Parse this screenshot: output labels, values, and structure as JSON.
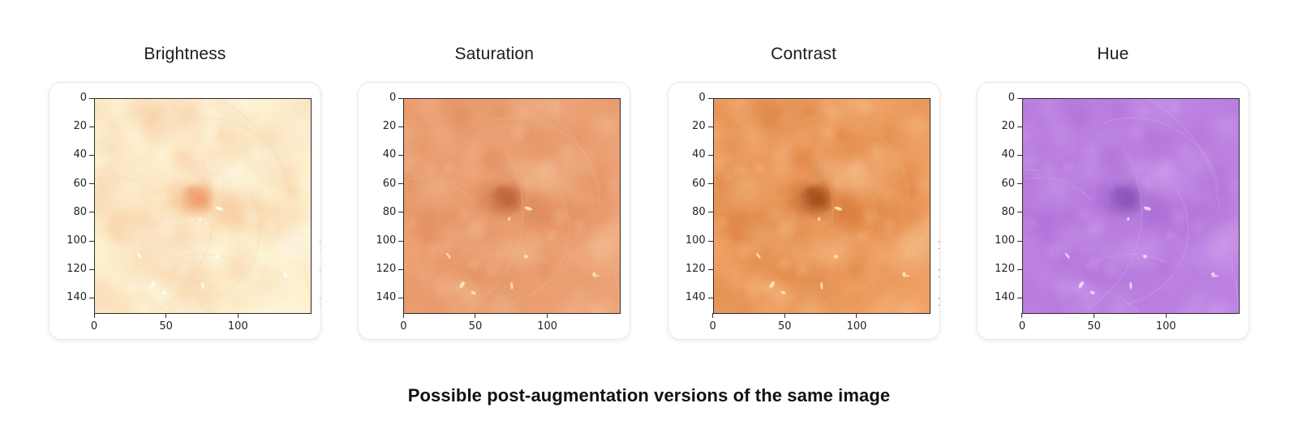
{
  "page": {
    "background": "#ffffff",
    "caption": "Possible post-augmentation versions of the same image"
  },
  "figure": {
    "y_ticks": [
      0,
      20,
      40,
      60,
      80,
      100,
      120,
      140
    ],
    "x_ticks": [
      0,
      50,
      100
    ],
    "axis_range": [
      0,
      150
    ],
    "spine_color": "#2b2b2b",
    "tick_color": "#242424",
    "neighbor_clipped_tick_label": "1"
  },
  "panels": [
    {
      "title": "Brightness",
      "clipped_right_ticks": true,
      "palette": {
        "base": "#fdf2d0",
        "patch": "#f6bb8b",
        "light": "#fffdf0",
        "lesion": "#ef9a67",
        "hair": "#f6d7a8",
        "speck": "#ffffff"
      }
    },
    {
      "title": "Saturation",
      "clipped_right_ticks": false,
      "palette": {
        "base": "#eda276",
        "patch": "#da8150",
        "light": "#f8cda5",
        "lesion": "#bd6136",
        "hair": "#eab88d",
        "speck": "#fdf0c2"
      }
    },
    {
      "title": "Contrast",
      "clipped_right_ticks": true,
      "palette": {
        "base": "#f0a064",
        "patch": "#d06e2c",
        "light": "#fbd2a0",
        "lesion": "#a14b18",
        "hair": "#eeab66",
        "speck": "#fff1bd"
      }
    },
    {
      "title": "Hue",
      "clipped_right_ticks": false,
      "palette": {
        "base": "#bd82e2",
        "patch": "#a867d3",
        "light": "#d9aef0",
        "lesion": "#8751b7",
        "hair": "#d4a4ec",
        "speck": "#f7e7ff"
      }
    }
  ],
  "chart_data": [
    {
      "type": "heatmap",
      "subtype": "rgb-photo-subplot",
      "title": "Brightness",
      "x_ticks": [
        0,
        50,
        100
      ],
      "y_ticks": [
        0,
        20,
        40,
        60,
        80,
        100,
        120,
        140
      ],
      "xlim": [
        0,
        150
      ],
      "ylim": [
        0,
        150
      ],
      "y_axis_inverted": true,
      "grid": false,
      "legend": "none",
      "content": "Dermoscopy skin-patch photo, brightness-boosted: washed-out pale cream and light-orange mottled texture, diffuse darker orange lesion centered near (72, 70), faint light hair arcs in lower half"
    },
    {
      "type": "heatmap",
      "subtype": "rgb-photo-subplot",
      "title": "Saturation",
      "x_ticks": [
        0,
        50,
        100
      ],
      "y_ticks": [
        0,
        20,
        40,
        60,
        80,
        100,
        120,
        140
      ],
      "xlim": [
        0,
        150
      ],
      "ylim": [
        0,
        150
      ],
      "y_axis_inverted": true,
      "grid": false,
      "legend": "none",
      "content": "Same skin patch, saturation-boosted: rich orange/salmon tones, brown-orange lesion centered near (72, 70), bright specks around (50-90, 100-115), hair arcs at bottom"
    },
    {
      "type": "heatmap",
      "subtype": "rgb-photo-subplot",
      "title": "Contrast",
      "x_ticks": [
        0,
        50,
        100
      ],
      "y_ticks": [
        0,
        20,
        40,
        60,
        80,
        100,
        120,
        140
      ],
      "xlim": [
        0,
        150
      ],
      "ylim": [
        0,
        150
      ],
      "y_axis_inverted": true,
      "grid": false,
      "legend": "none",
      "content": "Same skin patch, contrast-boosted: strong orange with pronounced dark brown lesion near (72, 70), darker mottled patches and brighter highlights"
    },
    {
      "type": "heatmap",
      "subtype": "rgb-photo-subplot",
      "title": "Hue",
      "x_ticks": [
        0,
        50,
        100
      ],
      "y_ticks": [
        0,
        20,
        40,
        60,
        80,
        100,
        120,
        140
      ],
      "xlim": [
        0,
        150
      ],
      "ylim": [
        0,
        150
      ],
      "y_axis_inverted": true,
      "grid": false,
      "legend": "none",
      "content": "Same skin patch, hue-shifted to violet/purple: lavender mottled texture with darker purple lesion centered near (72, 70)"
    }
  ]
}
